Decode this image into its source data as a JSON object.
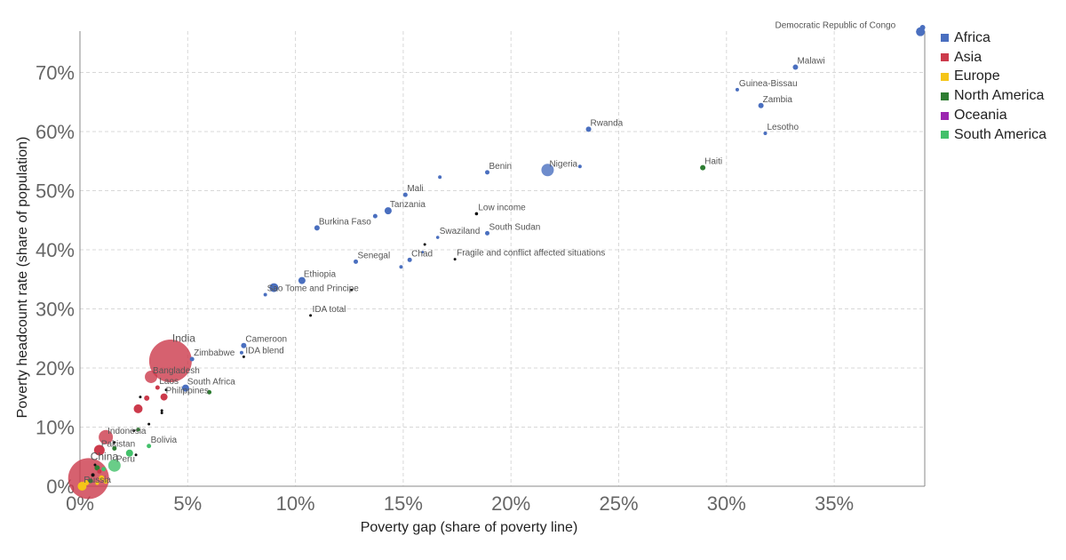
{
  "chart_data": {
    "type": "scatter",
    "xlabel": "Poverty gap (share of poverty line)",
    "ylabel": "Poverty headcount rate (share of population)",
    "xlim": [
      0,
      39.2
    ],
    "ylim": [
      0,
      77
    ],
    "x_ticks": [
      "0%",
      "5%",
      "10%",
      "15%",
      "20%",
      "25%",
      "30%",
      "35%"
    ],
    "y_ticks": [
      "0%",
      "10%",
      "20%",
      "30%",
      "40%",
      "50%",
      "60%",
      "70%"
    ],
    "grid": true,
    "legend_position": "top-right",
    "legend": [
      {
        "name": "Africa",
        "color": "#4a6fbf"
      },
      {
        "name": "Asia",
        "color": "#cc3a4b"
      },
      {
        "name": "Europe",
        "color": "#f5c518"
      },
      {
        "name": "North America",
        "color": "#2e7d32"
      },
      {
        "name": "Oceania",
        "color": "#9c27b0"
      },
      {
        "name": "South America",
        "color": "#43c06a"
      }
    ],
    "points": [
      {
        "label": "Democratic Republic of Congo",
        "x": 39.0,
        "y": 76.9,
        "size": 5,
        "group": "Africa"
      },
      {
        "label": "",
        "x": 39.1,
        "y": 77.6,
        "size": 3,
        "group": "Africa"
      },
      {
        "label": "Malawi",
        "x": 33.2,
        "y": 70.9,
        "size": 3,
        "group": "Africa"
      },
      {
        "label": "Guinea-Bissau",
        "x": 30.5,
        "y": 67.1,
        "size": 2,
        "group": "Africa"
      },
      {
        "label": "Zambia",
        "x": 31.6,
        "y": 64.4,
        "size": 3,
        "group": "Africa"
      },
      {
        "label": "Lesotho",
        "x": 31.8,
        "y": 59.7,
        "size": 2,
        "group": "Africa"
      },
      {
        "label": "Rwanda",
        "x": 23.6,
        "y": 60.4,
        "size": 3,
        "group": "Africa"
      },
      {
        "label": "Haiti",
        "x": 28.9,
        "y": 53.9,
        "size": 3,
        "group": "North America"
      },
      {
        "label": "Nigeria",
        "x": 21.7,
        "y": 53.5,
        "size": 7,
        "group": "Africa"
      },
      {
        "label": "",
        "x": 23.2,
        "y": 54.1,
        "size": 2,
        "group": "Africa"
      },
      {
        "label": "Benin",
        "x": 18.9,
        "y": 53.1,
        "size": 2.5,
        "group": "Africa"
      },
      {
        "label": "",
        "x": 16.7,
        "y": 52.3,
        "size": 2,
        "group": "Africa"
      },
      {
        "label": "Mali",
        "x": 15.1,
        "y": 49.3,
        "size": 2.5,
        "group": "Africa"
      },
      {
        "label": "Tanzania",
        "x": 14.3,
        "y": 46.6,
        "size": 4,
        "group": "Africa"
      },
      {
        "label": "",
        "x": 13.7,
        "y": 45.7,
        "size": 2.5,
        "group": "Africa"
      },
      {
        "label": "Low income",
        "x": 18.4,
        "y": 46.1,
        "size": 1.8,
        "group": "Aggregate"
      },
      {
        "label": "Burkina Faso",
        "x": 11.0,
        "y": 43.7,
        "size": 3,
        "group": "Africa"
      },
      {
        "label": "South Sudan",
        "x": 18.9,
        "y": 42.8,
        "size": 2.5,
        "group": "Africa"
      },
      {
        "label": "Swaziland",
        "x": 16.6,
        "y": 42.1,
        "size": 1.8,
        "group": "Africa"
      },
      {
        "label": "",
        "x": 16.0,
        "y": 40.9,
        "size": 1.5,
        "group": "Aggregate"
      },
      {
        "label": "Chad",
        "x": 15.3,
        "y": 38.3,
        "size": 2.5,
        "group": "Africa"
      },
      {
        "label": "Fragile and conflict affected situations",
        "x": 17.4,
        "y": 38.4,
        "size": 1.5,
        "group": "Aggregate"
      },
      {
        "label": "",
        "x": 15.9,
        "y": 39.6,
        "size": 1.5,
        "group": "Africa"
      },
      {
        "label": "Senegal",
        "x": 12.8,
        "y": 38.0,
        "size": 2.5,
        "group": "Africa"
      },
      {
        "label": "",
        "x": 14.9,
        "y": 37.1,
        "size": 2,
        "group": "Africa"
      },
      {
        "label": "Ethiopia",
        "x": 10.3,
        "y": 34.8,
        "size": 4,
        "group": "Africa"
      },
      {
        "label": "",
        "x": 9.0,
        "y": 33.6,
        "size": 5,
        "group": "Africa"
      },
      {
        "label": "Sao Tome and Principe",
        "x": 8.6,
        "y": 32.4,
        "size": 2,
        "group": "Africa"
      },
      {
        "label": "",
        "x": 12.6,
        "y": 33.2,
        "size": 1.5,
        "group": "Aggregate"
      },
      {
        "label": "IDA total",
        "x": 10.7,
        "y": 28.9,
        "size": 1.5,
        "group": "Aggregate"
      },
      {
        "label": "Cameroon",
        "x": 7.6,
        "y": 23.8,
        "size": 3,
        "group": "Africa"
      },
      {
        "label": "IDA blend",
        "x": 7.6,
        "y": 21.9,
        "size": 1.5,
        "group": "Aggregate"
      },
      {
        "label": "",
        "x": 7.5,
        "y": 22.6,
        "size": 2,
        "group": "Africa"
      },
      {
        "label": "Zimbabwe",
        "x": 5.2,
        "y": 21.5,
        "size": 2.5,
        "group": "Africa"
      },
      {
        "label": "India",
        "x": 4.2,
        "y": 21.2,
        "size": 24,
        "group": "Asia"
      },
      {
        "label": "Bangladesh",
        "x": 3.3,
        "y": 18.5,
        "size": 7,
        "group": "Asia"
      },
      {
        "label": "Laos",
        "x": 3.6,
        "y": 16.7,
        "size": 2.5,
        "group": "Asia"
      },
      {
        "label": "South Africa",
        "x": 4.9,
        "y": 16.6,
        "size": 4,
        "group": "Africa"
      },
      {
        "label": "",
        "x": 6.0,
        "y": 15.9,
        "size": 2.5,
        "group": "North America"
      },
      {
        "label": "",
        "x": 4.0,
        "y": 16.3,
        "size": 1.5,
        "group": "Aggregate"
      },
      {
        "label": "Philippines",
        "x": 3.9,
        "y": 15.1,
        "size": 4,
        "group": "Asia"
      },
      {
        "label": "",
        "x": 3.1,
        "y": 14.9,
        "size": 3,
        "group": "Asia"
      },
      {
        "label": "",
        "x": 2.8,
        "y": 15.1,
        "size": 1.5,
        "group": "Aggregate"
      },
      {
        "label": "",
        "x": 3.8,
        "y": 12.8,
        "size": 1.5,
        "group": "Aggregate"
      },
      {
        "label": "",
        "x": 3.8,
        "y": 12.4,
        "size": 1.5,
        "group": "Aggregate"
      },
      {
        "label": "",
        "x": 2.7,
        "y": 13.1,
        "size": 5,
        "group": "Asia"
      },
      {
        "label": "",
        "x": 3.2,
        "y": 10.5,
        "size": 1.5,
        "group": "Aggregate"
      },
      {
        "label": "Indonesia",
        "x": 1.2,
        "y": 8.3,
        "size": 8,
        "group": "Asia"
      },
      {
        "label": "",
        "x": 2.7,
        "y": 9.6,
        "size": 2,
        "group": "North America"
      },
      {
        "label": "",
        "x": 2.5,
        "y": 9.4,
        "size": 1.5,
        "group": "Aggregate"
      },
      {
        "label": "Bolivia",
        "x": 3.2,
        "y": 6.8,
        "size": 2.5,
        "group": "South America"
      },
      {
        "label": "Pakistan",
        "x": 0.9,
        "y": 6.1,
        "size": 6,
        "group": "Asia"
      },
      {
        "label": "",
        "x": 1.6,
        "y": 6.4,
        "size": 2.5,
        "group": "North America"
      },
      {
        "label": "",
        "x": 1.6,
        "y": 7.4,
        "size": 1.5,
        "group": "Aggregate"
      },
      {
        "label": "",
        "x": 2.3,
        "y": 5.6,
        "size": 4,
        "group": "South America"
      },
      {
        "label": "",
        "x": 2.6,
        "y": 5.3,
        "size": 1.5,
        "group": "Aggregate"
      },
      {
        "label": "Peru",
        "x": 1.6,
        "y": 3.5,
        "size": 7,
        "group": "South America"
      },
      {
        "label": "China",
        "x": 0.4,
        "y": 1.3,
        "size": 23,
        "group": "Asia"
      },
      {
        "label": "",
        "x": 0.8,
        "y": 3.1,
        "size": 3,
        "group": "North America"
      },
      {
        "label": "",
        "x": 0.9,
        "y": 2.5,
        "size": 2.5,
        "group": "Asia"
      },
      {
        "label": "",
        "x": 0.6,
        "y": 1.9,
        "size": 2,
        "group": "Aggregate"
      },
      {
        "label": "",
        "x": 0.7,
        "y": 3.6,
        "size": 1.5,
        "group": "Aggregate"
      },
      {
        "label": "",
        "x": 1.1,
        "y": 2.9,
        "size": 2.5,
        "group": "South America"
      },
      {
        "label": "",
        "x": 0.5,
        "y": 0.9,
        "size": 2.5,
        "group": "North America"
      },
      {
        "label": "",
        "x": 1.0,
        "y": 1.4,
        "size": 3,
        "group": "Europe"
      },
      {
        "label": "",
        "x": 1.2,
        "y": 0.8,
        "size": 2.5,
        "group": "Europe"
      },
      {
        "label": "Russia",
        "x": 0.1,
        "y": 0.0,
        "size": 5,
        "group": "Europe"
      },
      {
        "label": "",
        "x": 0.3,
        "y": 0.6,
        "size": 3,
        "group": "Europe"
      },
      {
        "label": "",
        "x": 0.8,
        "y": 0.5,
        "size": 2,
        "group": "Europe"
      }
    ],
    "group_colors": {
      "Africa": "#4a6fbf",
      "Asia": "#cc3a4b",
      "Europe": "#f5c518",
      "North America": "#2e7d32",
      "Oceania": "#9c27b0",
      "South America": "#43c06a",
      "Aggregate": "#111111"
    }
  }
}
